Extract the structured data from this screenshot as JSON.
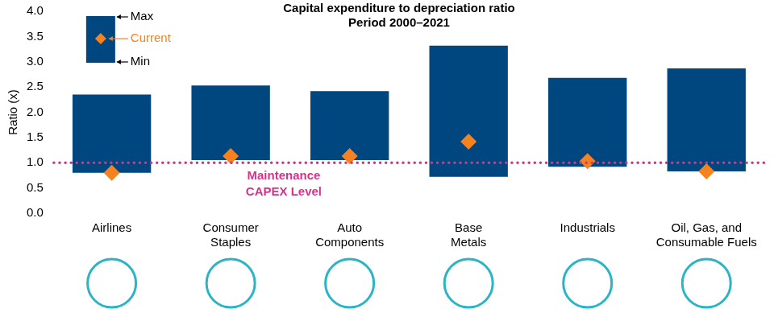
{
  "chart_data": {
    "type": "floating_bar",
    "title": "Capital expenditure to depreciation ratio",
    "subtitle": "Period 2000–2021",
    "y_label": "Ratio (x)",
    "categories": [
      "Airlines",
      [
        "Consumer",
        "Staples"
      ],
      [
        "Auto",
        "Components"
      ],
      [
        "Base",
        "Metals"
      ],
      "Industrials",
      [
        "Oil, Gas, and",
        "Consumable Fuels"
      ]
    ],
    "range": {
      "low_label": "Min",
      "high_label": "Max",
      "color": "#00467f",
      "low": [
        0.8,
        1.05,
        1.05,
        0.72,
        0.92,
        0.83
      ],
      "high": [
        2.35,
        2.53,
        2.42,
        3.32,
        2.68,
        2.87
      ]
    },
    "series": [
      {
        "name": "Current",
        "color": "#f5821f",
        "marker": "diamond",
        "values": [
          0.8,
          1.13,
          1.13,
          1.42,
          1.03,
          0.83
        ]
      }
    ],
    "reference_line": {
      "value": 1.0,
      "label": [
        "Maintenance",
        "CAPEX Level"
      ],
      "color": "#d6338a",
      "line_style": "dotted"
    },
    "ylim": [
      0,
      4
    ],
    "yticks": [
      {
        "value": 0,
        "label": "0.0"
      },
      {
        "value": 0.5,
        "label": "0.5"
      },
      {
        "value": 1,
        "label": "1.0"
      },
      {
        "value": 1.5,
        "label": "1.5"
      },
      {
        "value": 2,
        "label": "2.0"
      },
      {
        "value": 2.5,
        "label": "2.5"
      },
      {
        "value": 3,
        "label": "3.0"
      },
      {
        "value": 3.5,
        "label": "3.5"
      },
      {
        "value": 4,
        "label": "4.0"
      }
    ],
    "grid": false,
    "legend": "upper left"
  }
}
